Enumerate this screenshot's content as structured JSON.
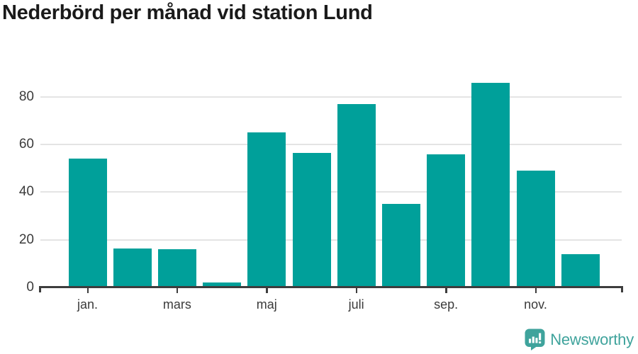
{
  "title": "Nederbörd per månad vid station Lund",
  "chart_data": {
    "type": "bar",
    "title": "Nederbörd per månad vid station Lund",
    "values": [
      54,
      16.5,
      16,
      2.2,
      65,
      56.5,
      77,
      35,
      56,
      86,
      49,
      14
    ],
    "x_tick_labels": [
      "jan.",
      "mars",
      "maj",
      "juli",
      "sep.",
      "nov."
    ],
    "x_tick_positions": [
      0,
      2,
      4,
      6,
      8,
      10
    ],
    "y_ticks": [
      0,
      20,
      40,
      60,
      80
    ],
    "ylim": [
      0,
      88
    ],
    "xlabel": "",
    "ylabel": "",
    "grid": "horizontal",
    "legend": "none",
    "bar_color": "#00a09a",
    "grid_color": "#e4e4e4",
    "axis_color": "#3d3d3d",
    "tick_label_color": "#3b3b3b"
  },
  "footer": {
    "brand": "Newsworthy",
    "brand_color": "#3fa39c",
    "icon": "newsworthy-bar-chart-speech-bubble-icon"
  }
}
